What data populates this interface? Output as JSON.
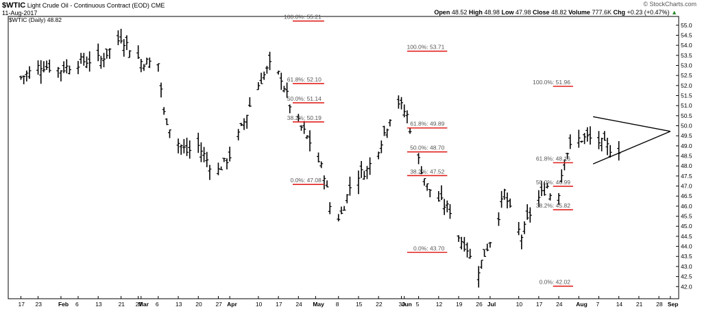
{
  "header": {
    "symbol": "$WTIC",
    "description": "Light Crude Oil - Continuous Contract (EOD)",
    "exchange": "CME",
    "date": "11-Aug-2017",
    "open_label": "Open",
    "open": "48.52",
    "high_label": "High",
    "high": "48.98",
    "low_label": "Low",
    "low": "47.98",
    "close_label": "Close",
    "close": "48.82",
    "volume_label": "Volume",
    "volume": "777.6K",
    "chg_label": "Chg",
    "chg": "+0.23 (+0.47%)",
    "chg_arrow": "▲",
    "watermark": "© StockCharts.com",
    "legend": "$WTIC (Daily) 48.82"
  },
  "colors": {
    "fib_line": "#e0201c",
    "price_bar": "#000000",
    "grid_text": "#000000"
  },
  "chart_data": {
    "type": "bar",
    "title": "$WTIC Light Crude Oil - Continuous Contract (EOD) CME",
    "ylim": [
      41.6,
      55.3
    ],
    "y_ticks": [
      42.0,
      42.5,
      43.0,
      43.5,
      44.0,
      44.5,
      45.0,
      45.5,
      46.0,
      46.5,
      47.0,
      47.5,
      48.0,
      48.5,
      49.0,
      49.5,
      50.0,
      50.5,
      51.0,
      51.5,
      52.0,
      52.5,
      53.0,
      53.5,
      54.0,
      54.5,
      55.0
    ],
    "x_tick_labels": [
      "17",
      "23",
      "Feb",
      "6",
      "13",
      "21",
      "27",
      "Mar",
      "6",
      "13",
      "20",
      "27",
      "Apr",
      "10",
      "17",
      "24",
      "May",
      "8",
      "15",
      "22",
      "30",
      "Jun",
      "5",
      "12",
      "19",
      "26",
      "Jul",
      "10",
      "17",
      "24",
      "Aug",
      "7",
      "14",
      "21",
      "28",
      "Sep"
    ],
    "x_tick_days": [
      16,
      22,
      30,
      36,
      43,
      51,
      57,
      58,
      64,
      71,
      78,
      85,
      89,
      99,
      106,
      113,
      119,
      127,
      134,
      141,
      149,
      150,
      155,
      162,
      169,
      176,
      180,
      190,
      197,
      204,
      211,
      218,
      225,
      232,
      239,
      243
    ],
    "series": [
      {
        "approx_daily_close_path": [
          [
            16,
            52.4
          ],
          [
            23,
            53.0
          ],
          [
            30,
            52.8
          ],
          [
            37,
            53.2
          ],
          [
            44,
            53.3
          ],
          [
            51,
            54.4
          ],
          [
            58,
            53.2
          ],
          [
            64,
            53.1
          ],
          [
            66,
            50.6
          ],
          [
            70,
            49.3
          ],
          [
            74,
            48.7
          ],
          [
            78,
            49.0
          ],
          [
            84,
            47.6
          ],
          [
            89,
            48.5
          ],
          [
            94,
            50.2
          ],
          [
            98,
            51.8
          ],
          [
            103,
            53.0
          ],
          [
            107,
            52.4
          ],
          [
            111,
            50.6
          ],
          [
            117,
            49.2
          ],
          [
            122,
            47.6
          ],
          [
            125,
            45.2
          ],
          [
            128,
            45.6
          ],
          [
            132,
            47.4
          ],
          [
            137,
            47.8
          ],
          [
            141,
            48.9
          ],
          [
            144,
            50.0
          ],
          [
            147,
            51.4
          ],
          [
            151,
            50.5
          ],
          [
            154,
            48.7
          ],
          [
            158,
            47.0
          ],
          [
            162,
            46.3
          ],
          [
            166,
            45.8
          ],
          [
            169,
            44.5
          ],
          [
            172,
            43.9
          ],
          [
            175,
            42.5
          ],
          [
            178,
            43.6
          ],
          [
            182,
            45.0
          ],
          [
            185,
            46.7
          ],
          [
            188,
            45.3
          ],
          [
            191,
            44.5
          ],
          [
            195,
            46.0
          ],
          [
            200,
            47.0
          ],
          [
            203,
            45.8
          ],
          [
            206,
            48.5
          ],
          [
            210,
            49.3
          ],
          [
            214,
            49.4
          ],
          [
            218,
            49.2
          ],
          [
            223,
            48.8
          ],
          [
            225,
            48.82
          ]
        ]
      }
    ],
    "fib_levels": [
      {
        "label": "100.0%: 55.21",
        "value": 55.21,
        "day_start": 111,
        "day_end": 122
      },
      {
        "label": "61.8%: 52.10",
        "value": 52.1,
        "day_start": 111,
        "day_end": 122
      },
      {
        "label": "50.0%: 51.14",
        "value": 51.14,
        "day_start": 111,
        "day_end": 122
      },
      {
        "label": "38.2%: 50.19",
        "value": 50.19,
        "day_start": 111,
        "day_end": 122
      },
      {
        "label": "0.0%: 47.08",
        "value": 47.08,
        "day_start": 111,
        "day_end": 122
      },
      {
        "label": "100.0%: 53.71",
        "value": 53.71,
        "day_start": 151,
        "day_end": 165
      },
      {
        "label": "61.8%: 49.89",
        "value": 49.89,
        "day_start": 151,
        "day_end": 165
      },
      {
        "label": "50.0%: 48.70",
        "value": 48.7,
        "day_start": 151,
        "day_end": 165
      },
      {
        "label": "38.2%: 47.52",
        "value": 47.52,
        "day_start": 151,
        "day_end": 165
      },
      {
        "label": "0.0%: 43.70",
        "value": 43.7,
        "day_start": 151,
        "day_end": 165
      },
      {
        "label": "100.0%: 51.96",
        "value": 51.96,
        "day_start": 202,
        "day_end": 209
      },
      {
        "label": "61.8%: 48.16",
        "value": 48.16,
        "day_start": 202,
        "day_end": 209
      },
      {
        "label": "50.0%: 46.99",
        "value": 46.99,
        "day_start": 202,
        "day_end": 209
      },
      {
        "label": "38.2%: 45.82",
        "value": 45.82,
        "day_start": 202,
        "day_end": 209
      },
      {
        "label": "0.0%: 42.02",
        "value": 42.02,
        "day_start": 202,
        "day_end": 209
      }
    ],
    "triangle": {
      "points": [
        [
          216,
          50.45
        ],
        [
          243,
          49.72
        ],
        [
          216,
          48.1
        ]
      ]
    }
  }
}
